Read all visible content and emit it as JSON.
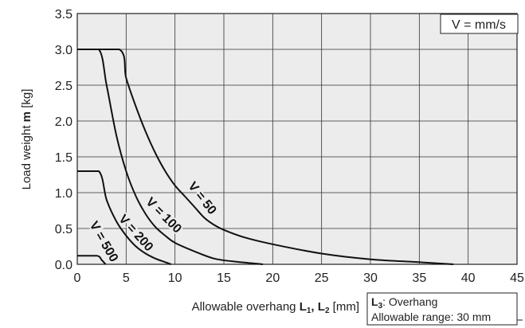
{
  "chart_data": {
    "type": "line",
    "title": "",
    "units_note": "V = mm/s",
    "xlabel_prefix": "Allowable overhang ",
    "xlabel_l1": "L",
    "xlabel_l1_sub": "1",
    "xlabel_sep": ", ",
    "xlabel_l2": "L",
    "xlabel_l2_sub": "2",
    "xlabel_unit": " [mm]",
    "ylabel_prefix": "Load weight ",
    "ylabel_bold": "m",
    "ylabel_unit": " [kg]",
    "xlim": [
      0,
      45
    ],
    "ylim": [
      0,
      3.5
    ],
    "xticks": [
      "0",
      "5",
      "10",
      "15",
      "20",
      "25",
      "30",
      "35",
      "40",
      "45"
    ],
    "yticks": [
      "0.0",
      "0.5",
      "1.0",
      "1.5",
      "2.0",
      "2.5",
      "3.0",
      "3.5"
    ],
    "grid": true,
    "series": [
      {
        "name": "V = 50",
        "points": [
          [
            0,
            3.0
          ],
          [
            4.3,
            3.0
          ],
          [
            5,
            2.6
          ],
          [
            6,
            2.2
          ],
          [
            7,
            1.85
          ],
          [
            8,
            1.55
          ],
          [
            9,
            1.3
          ],
          [
            10,
            1.1
          ],
          [
            11,
            0.95
          ],
          [
            12,
            0.8
          ],
          [
            13,
            0.65
          ],
          [
            14,
            0.55
          ],
          [
            15,
            0.48
          ],
          [
            17,
            0.38
          ],
          [
            20,
            0.28
          ],
          [
            25,
            0.15
          ],
          [
            30,
            0.07
          ],
          [
            35,
            0.03
          ],
          [
            38.5,
            0.0
          ]
        ]
      },
      {
        "name": "V = 100",
        "points": [
          [
            0,
            3.0
          ],
          [
            2.2,
            3.0
          ],
          [
            3,
            2.5
          ],
          [
            4,
            1.8
          ],
          [
            5,
            1.3
          ],
          [
            6,
            0.95
          ],
          [
            7,
            0.7
          ],
          [
            8,
            0.52
          ],
          [
            9,
            0.4
          ],
          [
            10,
            0.3
          ],
          [
            12,
            0.18
          ],
          [
            14,
            0.08
          ],
          [
            16,
            0.04
          ],
          [
            19,
            0.0
          ]
        ]
      },
      {
        "name": "V = 200",
        "points": [
          [
            0,
            1.3
          ],
          [
            2.2,
            1.3
          ],
          [
            3,
            0.9
          ],
          [
            4,
            0.6
          ],
          [
            5,
            0.4
          ],
          [
            6,
            0.25
          ],
          [
            7,
            0.15
          ],
          [
            8,
            0.08
          ],
          [
            9,
            0.03
          ],
          [
            9.6,
            0.0
          ]
        ]
      },
      {
        "name": "V = 500",
        "points": [
          [
            0,
            0.12
          ],
          [
            2,
            0.12
          ],
          [
            2.5,
            0.06
          ],
          [
            2.9,
            0.0
          ]
        ]
      }
    ],
    "note_l3": "L",
    "note_l3_sub": "3",
    "note_line1": ": Overhang",
    "note_line2": "Allowable range: 30 mm"
  }
}
